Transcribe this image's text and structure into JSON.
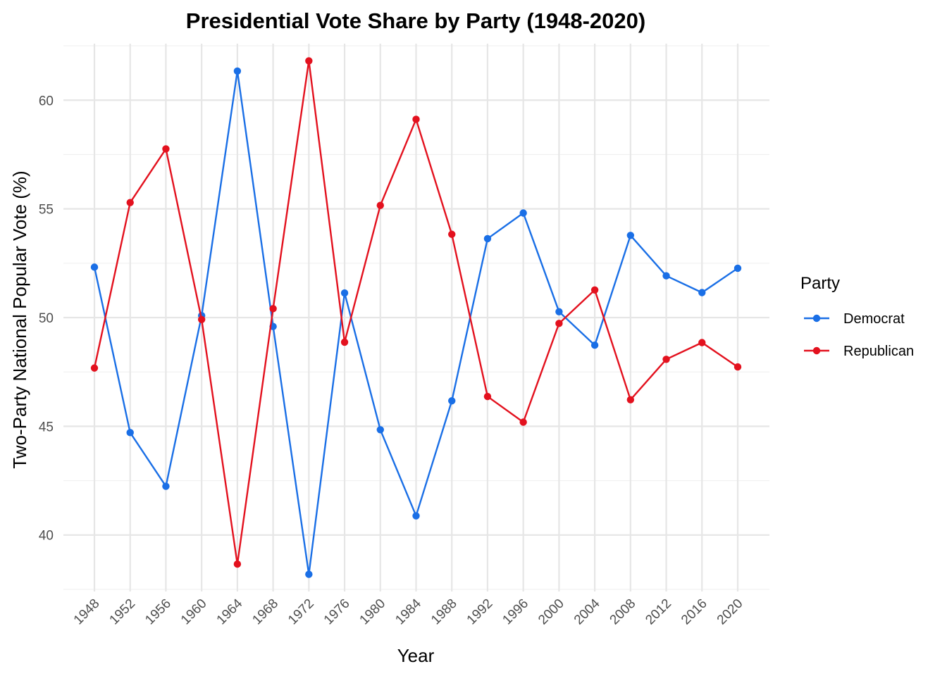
{
  "chart_data": {
    "type": "line",
    "title": "Presidential Vote Share by Party (1948-2020)",
    "xlabel": "Year",
    "ylabel": "Two-Party National Popular Vote (%)",
    "x": [
      "1948",
      "1952",
      "1956",
      "1960",
      "1964",
      "1968",
      "1972",
      "1976",
      "1980",
      "1984",
      "1988",
      "1992",
      "1996",
      "2000",
      "2004",
      "2008",
      "2012",
      "2016",
      "2020"
    ],
    "ylim": [
      37.4,
      62.6
    ],
    "yticks": [
      40,
      45,
      50,
      55,
      60
    ],
    "grid": true,
    "legend": {
      "title": "Party",
      "position": "right"
    },
    "series": [
      {
        "name": "Democrat",
        "color": "#1a6fe6",
        "values": [
          52.32,
          44.71,
          42.24,
          50.09,
          61.34,
          49.59,
          38.19,
          51.13,
          44.84,
          40.88,
          46.17,
          53.63,
          54.81,
          50.27,
          48.73,
          53.78,
          51.92,
          51.15,
          52.27
        ]
      },
      {
        "name": "Republican",
        "color": "#e3111e",
        "values": [
          47.68,
          55.29,
          57.76,
          49.91,
          38.66,
          50.41,
          61.81,
          48.87,
          55.16,
          59.12,
          53.83,
          46.37,
          45.19,
          49.73,
          51.27,
          46.22,
          48.08,
          48.85,
          47.73
        ]
      }
    ]
  }
}
